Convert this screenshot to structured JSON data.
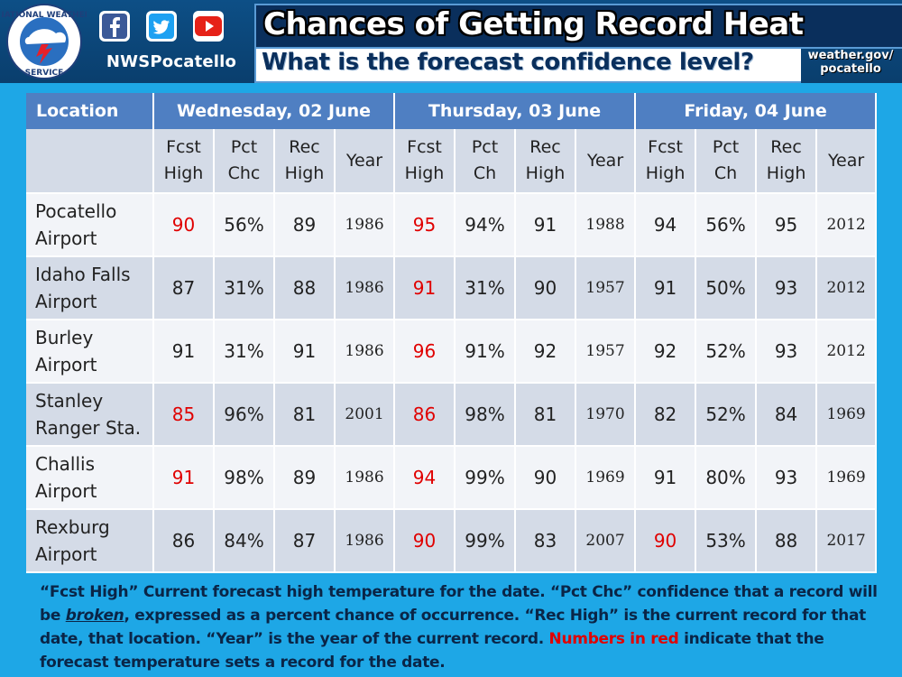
{
  "header": {
    "handle": "NWSPocatello",
    "title": "Chances of Getting Record Heat",
    "subtitle": "What is the forecast confidence level?",
    "site_line1": "weather.gov/",
    "site_line2": "pocatello",
    "logo_text": "NATIONAL WEATHER SERVICE"
  },
  "table": {
    "location_header": "Location",
    "days": [
      "Wednesday, 02 June",
      "Thursday, 03 June",
      "Friday, 04 June"
    ],
    "subheaders": [
      [
        "Fcst High",
        "Pct Chc",
        "Rec High",
        "Year"
      ],
      [
        "Fcst High",
        "Pct Ch",
        "Rec High",
        "Year"
      ],
      [
        "Fcst High",
        "Pct Ch",
        "Rec High",
        "Year"
      ]
    ],
    "rows": [
      {
        "loc1": "Pocatello",
        "loc2": "Airport",
        "vals": [
          "90",
          "56%",
          "89",
          "1986",
          "95",
          "94%",
          "91",
          "1988",
          "94",
          "56%",
          "95",
          "2012"
        ],
        "red": [
          0,
          4
        ]
      },
      {
        "loc1": "Idaho Falls",
        "loc2": "Airport",
        "vals": [
          "87",
          "31%",
          "88",
          "1986",
          "91",
          "31%",
          "90",
          "1957",
          "91",
          "50%",
          "93",
          "2012"
        ],
        "red": [
          4
        ]
      },
      {
        "loc1": "Burley",
        "loc2": "Airport",
        "vals": [
          "91",
          "31%",
          "91",
          "1986",
          "96",
          "91%",
          "92",
          "1957",
          "92",
          "52%",
          "93",
          "2012"
        ],
        "red": [
          4
        ]
      },
      {
        "loc1": "Stanley",
        "loc2": "Ranger Sta.",
        "vals": [
          "85",
          "96%",
          "81",
          "2001",
          "86",
          "98%",
          "81",
          "1970",
          "82",
          "52%",
          "84",
          "1969"
        ],
        "red": [
          0,
          4
        ]
      },
      {
        "loc1": "Challis",
        "loc2": "Airport",
        "vals": [
          "91",
          "98%",
          "89",
          "1986",
          "94",
          "99%",
          "90",
          "1969",
          "91",
          "80%",
          "93",
          "1969"
        ],
        "red": [
          0,
          4
        ]
      },
      {
        "loc1": "Rexburg",
        "loc2": "Airport",
        "vals": [
          "86",
          "84%",
          "87",
          "1986",
          "90",
          "99%",
          "83",
          "2007",
          "90",
          "53%",
          "88",
          "2017"
        ],
        "red": [
          4,
          8
        ]
      }
    ]
  },
  "note": {
    "part1": "“Fcst High” Current forecast high temperature for the date.  “Pct Chc” confidence that a record will be ",
    "broken": "broken",
    "part2": ", expressed as a percent chance of occurrence.  “Rec High” is the current record for that date, that location.  “Year” is the year of the current record. ",
    "red": "Numbers in red",
    "part3": " indicate that the forecast temperature sets a record for the date."
  },
  "colors": {
    "background": "#1ea7e6",
    "header_band": "#0d4f86",
    "table_header": "#4f7fc2",
    "row_light": "#f2f4f8",
    "row_dark": "#d4dbe7",
    "record_red": "#e00000"
  },
  "icons": [
    "nws-logo-icon",
    "facebook-icon",
    "twitter-icon",
    "youtube-icon"
  ]
}
